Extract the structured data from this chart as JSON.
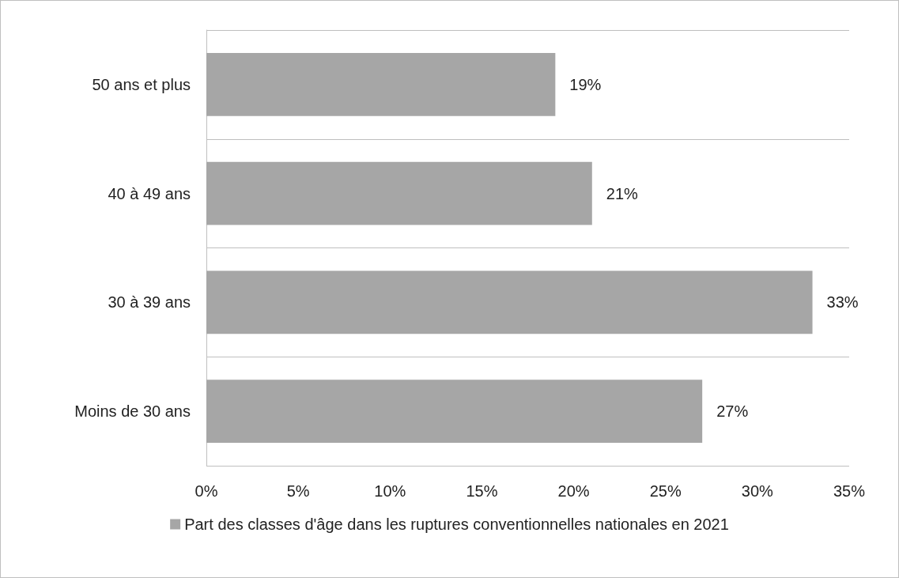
{
  "chart_data": {
    "type": "bar",
    "orientation": "horizontal",
    "categories": [
      "50 ans et plus",
      "40 à 49 ans",
      "30 à 39 ans",
      "Moins de 30 ans"
    ],
    "series": [
      {
        "name": "Part des classes d'âge dans les ruptures conventionnelles nationales en 2021",
        "color": "#a6a6a6",
        "values": [
          19,
          21,
          33,
          27
        ],
        "value_labels": [
          "19%",
          "21%",
          "33%",
          "27%"
        ]
      }
    ],
    "xlim": [
      0,
      35
    ],
    "xticks": [
      {
        "value": 0,
        "label": "0%"
      },
      {
        "value": 5,
        "label": "5%"
      },
      {
        "value": 10,
        "label": "10%"
      },
      {
        "value": 15,
        "label": "15%"
      },
      {
        "value": 20,
        "label": "20%"
      },
      {
        "value": 25,
        "label": "25%"
      },
      {
        "value": 30,
        "label": "30%"
      },
      {
        "value": 35,
        "label": "35%"
      }
    ],
    "grid": "y",
    "legend": "bottom"
  }
}
